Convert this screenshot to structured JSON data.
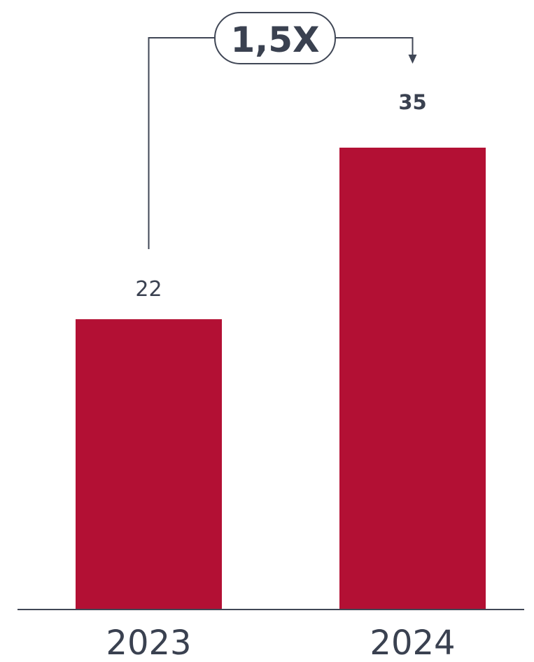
{
  "chart_data": {
    "type": "bar",
    "categories": [
      "2023",
      "2024"
    ],
    "values": [
      22,
      35
    ],
    "data_labels": [
      "22",
      "35"
    ],
    "ylim": [
      0,
      35
    ],
    "grid": false,
    "legend": "none",
    "annotation": {
      "label": "1,5X",
      "from_category": "2023",
      "to_category": "2024"
    },
    "colors": {
      "bar": "#b31034",
      "axis": "#404756",
      "text": "#3a4150",
      "bracket": "#404756"
    }
  }
}
